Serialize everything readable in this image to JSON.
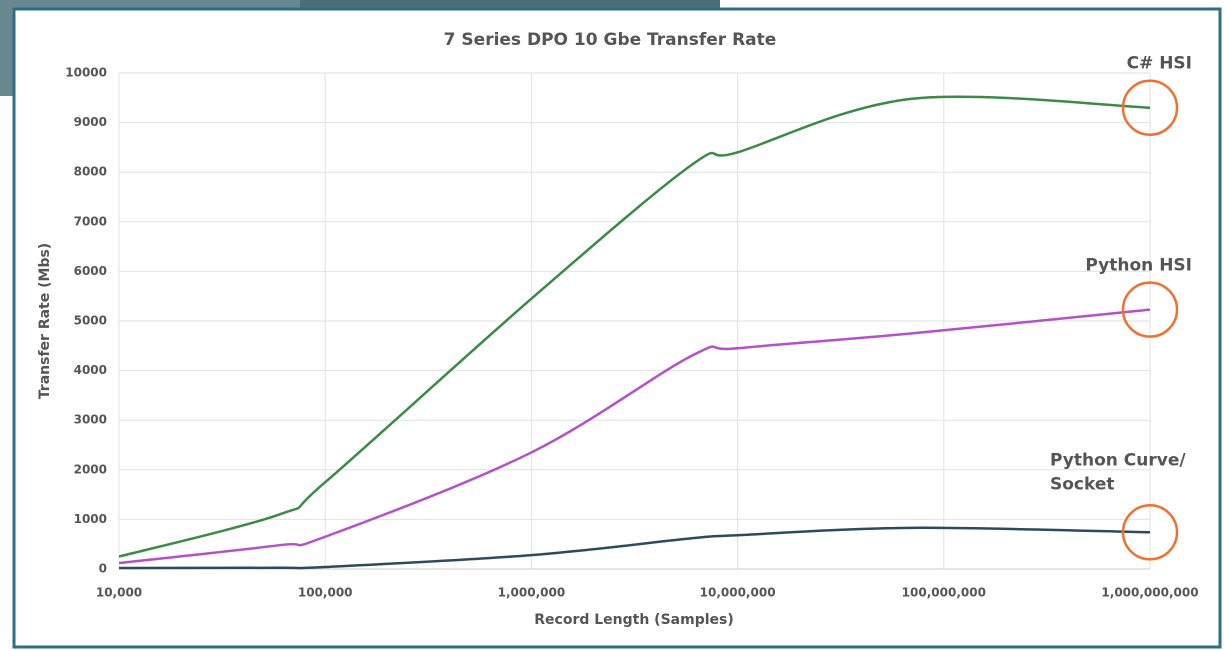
{
  "chart_data": {
    "type": "line",
    "title": "7 Series DPO  10 Gbe Transfer Rate",
    "x_label": "Record Length  (Samples)",
    "y_label": "Transfer Rate  (Mbs)",
    "log_x": true,
    "grid": true,
    "x": [
      10000,
      60000,
      100000,
      1000000,
      6000000,
      10000000,
      70000000,
      1000000000
    ],
    "series": [
      {
        "name": "C# HSI",
        "color": "#3b8a47",
        "values": [
          250,
          1100,
          1750,
          5450,
          8150,
          8400,
          9480,
          9300
        ]
      },
      {
        "name": "Python HSI",
        "color": "#b650c8",
        "values": [
          120,
          480,
          650,
          2350,
          4300,
          4450,
          4750,
          5230
        ]
      },
      {
        "name": [
          "Python Curve/",
          "Socket"
        ],
        "color": "#2e4b5e",
        "values": [
          20,
          25,
          40,
          280,
          620,
          680,
          830,
          740
        ]
      }
    ],
    "highlight_color": "#f07030",
    "xlim": [
      10000,
      1000000000
    ],
    "xticks": [
      {
        "value": 10000,
        "label": "10,000"
      },
      {
        "value": 100000,
        "label": "100,000"
      },
      {
        "value": 1000000,
        "label": "1,000,000"
      },
      {
        "value": 10000000,
        "label": "10,000,000"
      },
      {
        "value": 100000000,
        "label": "100,000,000"
      },
      {
        "value": 1000000000,
        "label": "1,000,000,000"
      }
    ],
    "ylim": [
      0,
      10000
    ],
    "yticks": [
      0,
      1000,
      2000,
      3000,
      4000,
      5000,
      6000,
      7000,
      8000,
      9000,
      10000
    ]
  }
}
